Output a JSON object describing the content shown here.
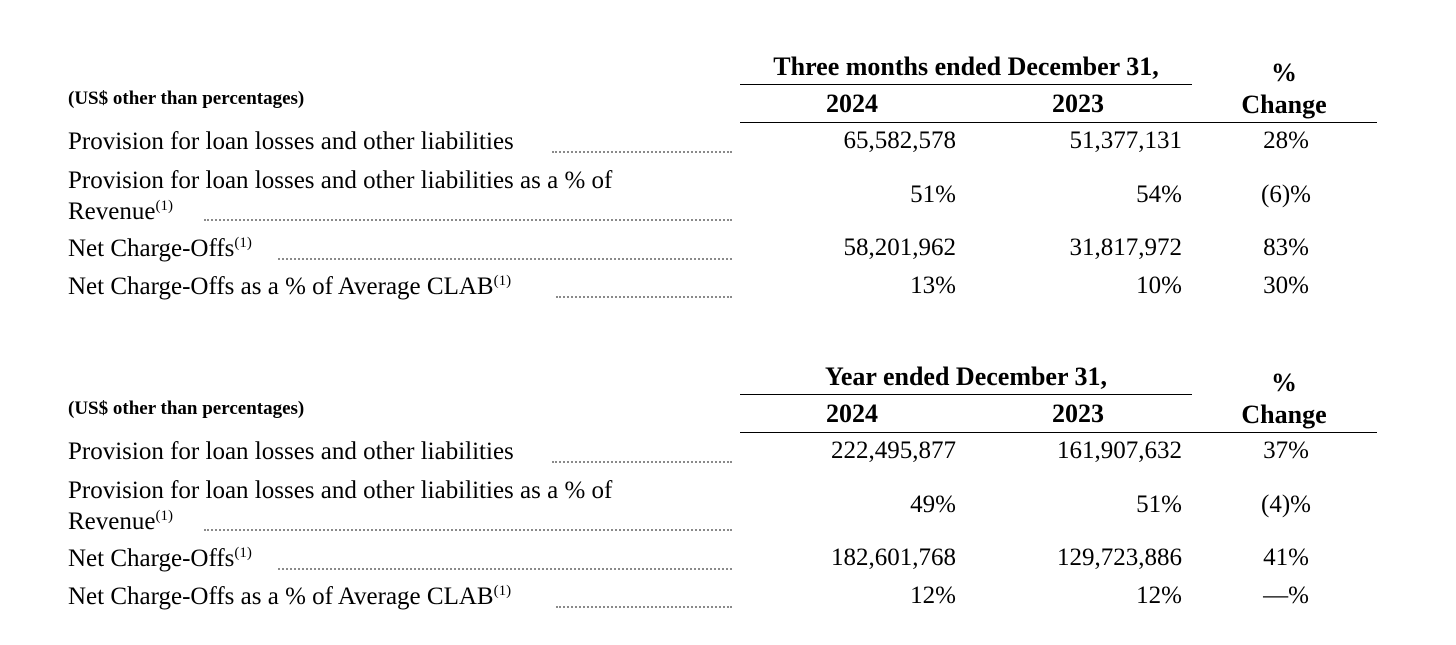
{
  "tables": [
    {
      "group_header": "Three months ended December 31,",
      "units_label": "(US$ other than percentages)",
      "year_current": "2024",
      "year_prior": "2023",
      "pct_label": "%",
      "change_label": "Change",
      "rows": [
        {
          "label": "Provision for loan losses and other liabilities",
          "current": "65,582,578",
          "prior": "51,377,131",
          "change": "28%"
        },
        {
          "label_line1": "Provision for loan losses and other liabilities as a % of",
          "label_line2": "Revenue",
          "footnote": "(1)",
          "current": "51%",
          "prior": "54%",
          "change": "(6)%"
        },
        {
          "label": "Net Charge-Offs",
          "footnote": "(1)",
          "current": "58,201,962",
          "prior": "31,817,972",
          "change": "83%"
        },
        {
          "label": "Net Charge-Offs as a % of Average CLAB",
          "footnote": "(1)",
          "current": "13%",
          "prior": "10%",
          "change": "30%"
        }
      ]
    },
    {
      "group_header": "Year ended December 31,",
      "units_label": "(US$ other than percentages)",
      "year_current": "2024",
      "year_prior": "2023",
      "pct_label": "%",
      "change_label": "Change",
      "rows": [
        {
          "label": "Provision for loan losses and other liabilities",
          "current": "222,495,877",
          "prior": "161,907,632",
          "change": "37%"
        },
        {
          "label_line1": "Provision for loan losses and other liabilities as a % of",
          "label_line2": "Revenue",
          "footnote": "(1)",
          "current": "49%",
          "prior": "51%",
          "change": "(4)%"
        },
        {
          "label": "Net Charge-Offs",
          "footnote": "(1)",
          "current": "182,601,768",
          "prior": "129,723,886",
          "change": "41%"
        },
        {
          "label": "Net Charge-Offs as a % of Average CLAB",
          "footnote": "(1)",
          "current": "12%",
          "prior": "12%",
          "change": "—%"
        }
      ]
    }
  ]
}
